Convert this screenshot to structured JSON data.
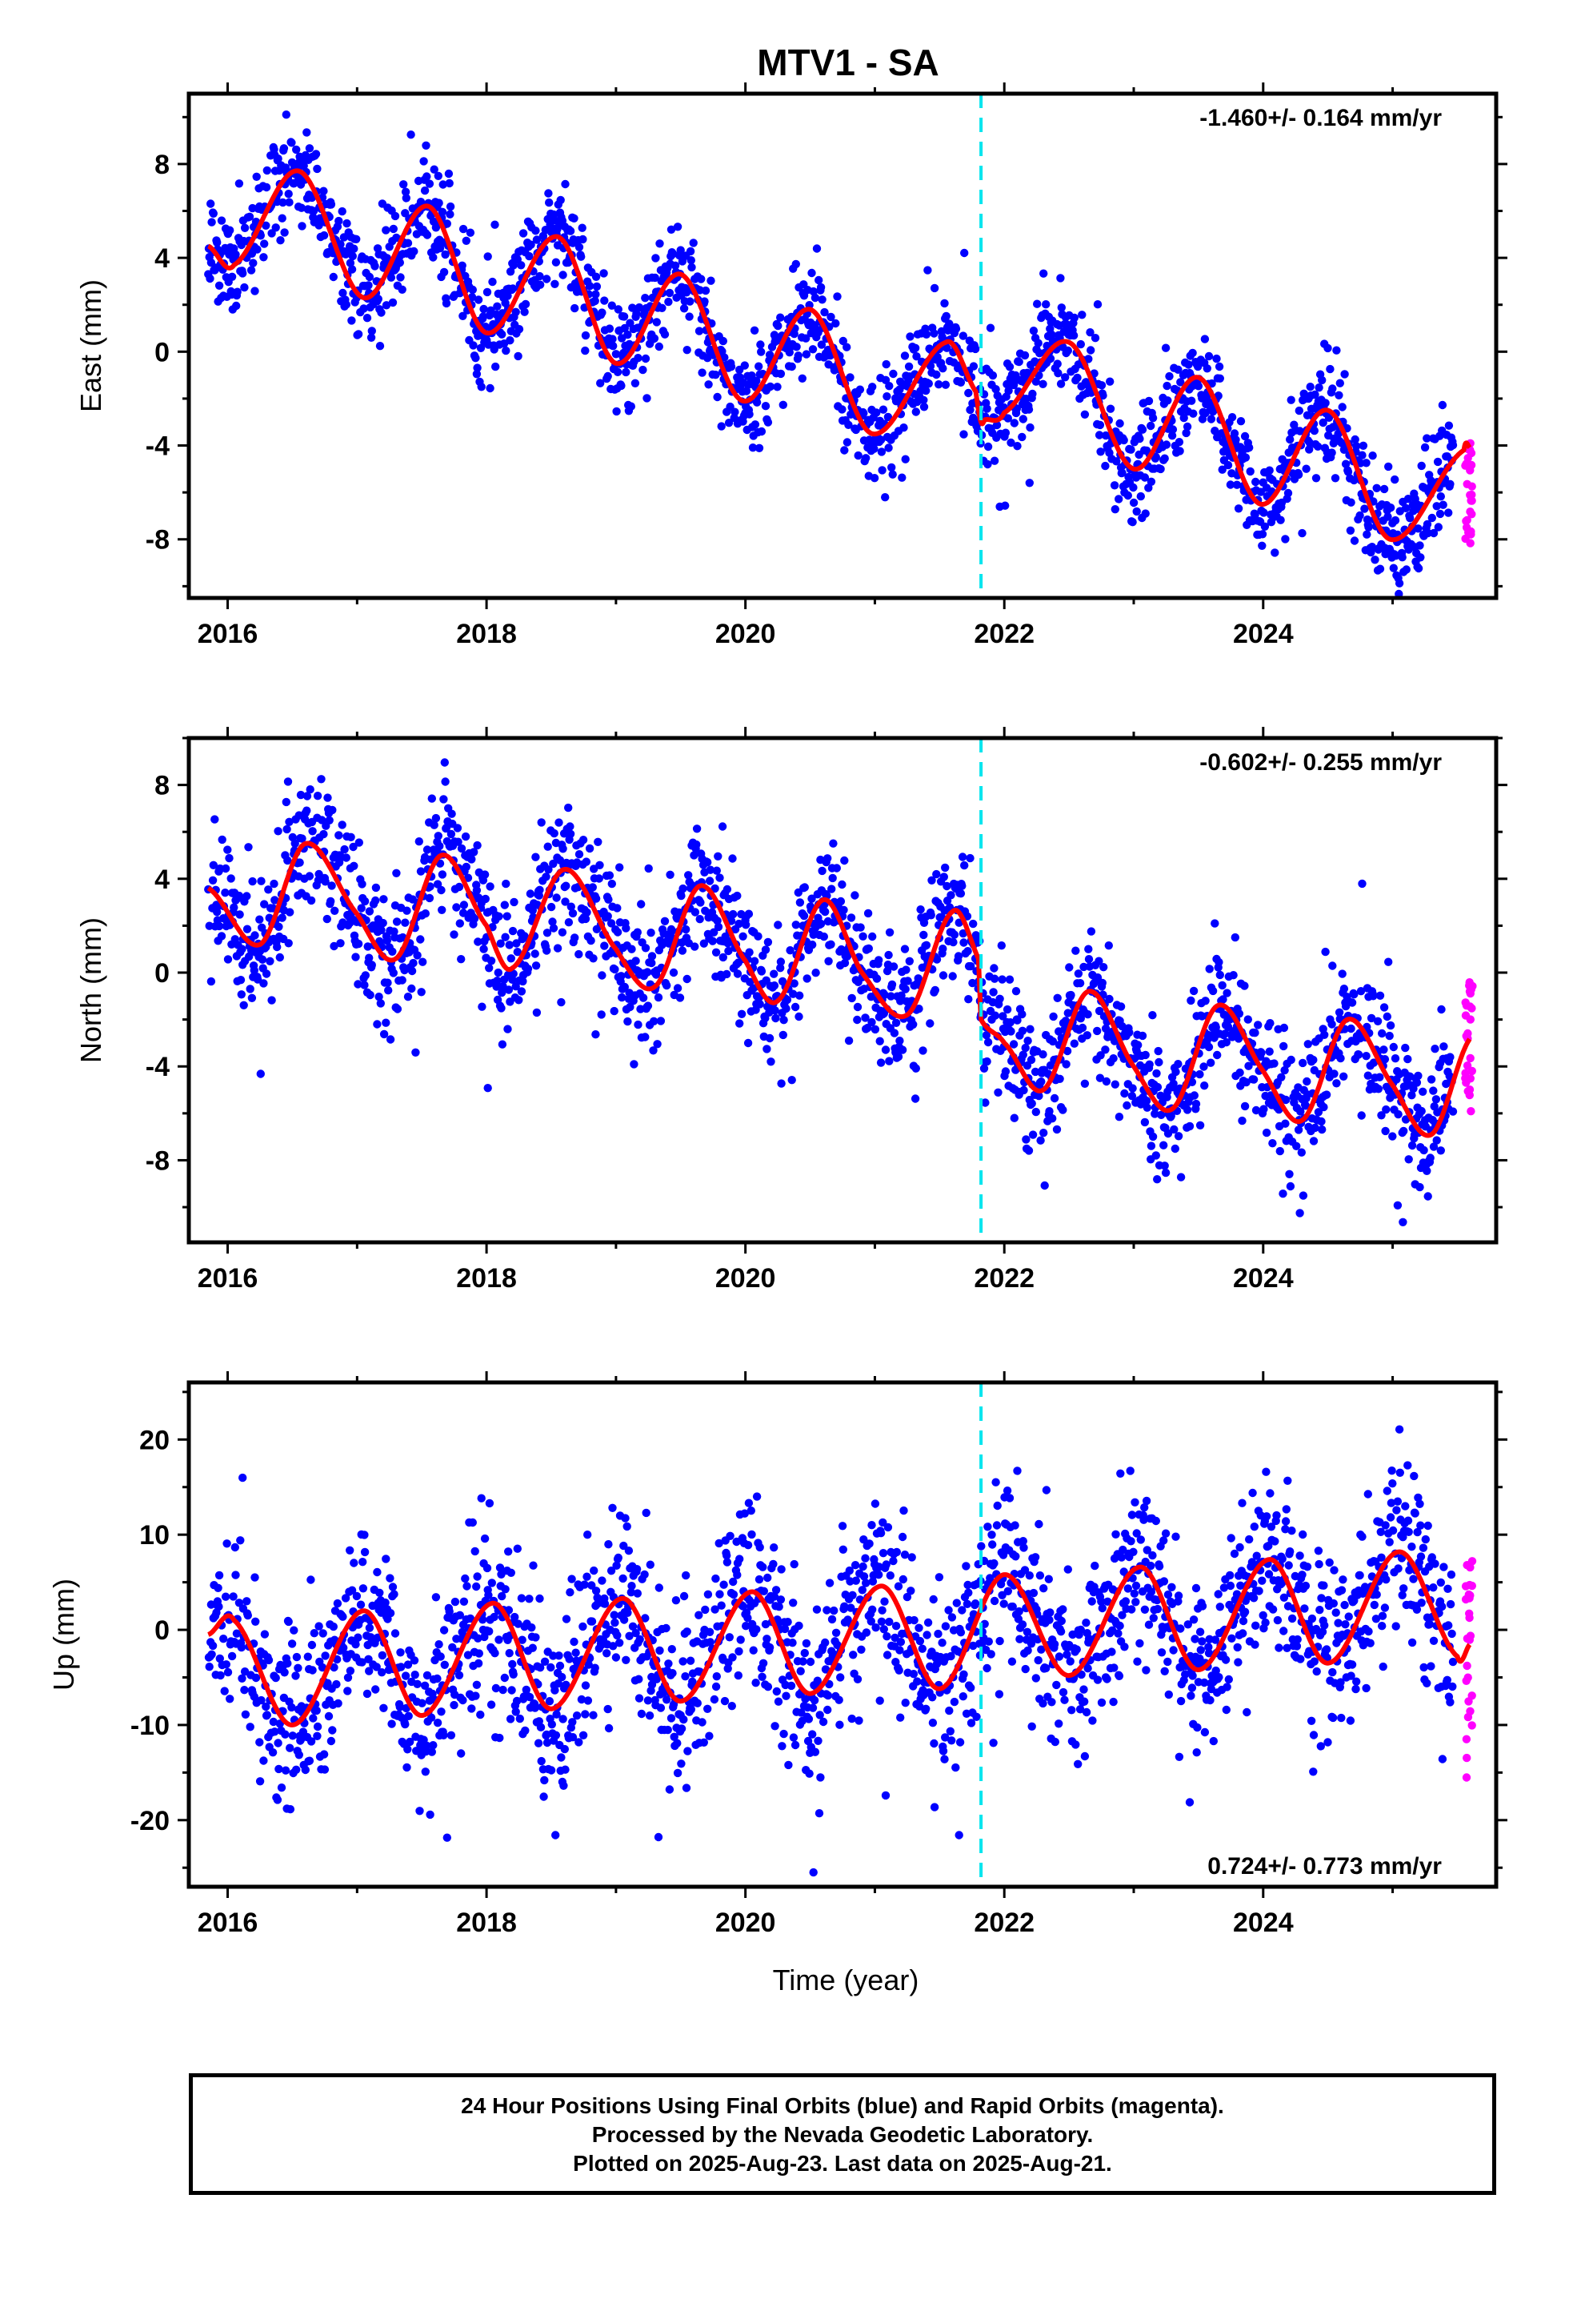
{
  "title": "MTV1 - SA",
  "xlabel": "Time (year)",
  "footer": {
    "line1": "24 Hour Positions Using Final Orbits (blue) and Rapid Orbits (magenta).",
    "line2": "Processed by the Nevada Geodetic Laboratory.",
    "line3": "Plotted on 2025-Aug-23. Last data on 2025-Aug-21."
  },
  "colors": {
    "final_orbits": "#0000ff",
    "rapid_orbits": "#ff00ff",
    "model": "#ff0000",
    "offset_line": "#00e5ee"
  },
  "chart_data": [
    {
      "type": "scatter",
      "name": "east",
      "ylabel": "East (mm)",
      "rate": "-1.460+/- 0.164 mm/yr",
      "rate_position": "top-right",
      "xlim": [
        2015.7,
        2025.8
      ],
      "ylim": [
        -10.5,
        11
      ],
      "yticks": [
        8,
        4,
        0,
        -4,
        -8
      ],
      "xticks": [
        2016,
        2018,
        2020,
        2022,
        2024
      ],
      "offset_epoch": 2021.82,
      "model_anchors": [
        [
          2015.85,
          4.5
        ],
        [
          2016.05,
          3.7
        ],
        [
          2016.55,
          7.7
        ],
        [
          2017.05,
          2.3
        ],
        [
          2017.55,
          6.2
        ],
        [
          2018.0,
          0.8
        ],
        [
          2018.55,
          4.9
        ],
        [
          2019.0,
          -0.5
        ],
        [
          2019.5,
          3.3
        ],
        [
          2019.98,
          -2.1
        ],
        [
          2020.5,
          1.8
        ],
        [
          2020.98,
          -3.5
        ],
        [
          2021.55,
          0.4
        ],
        [
          2021.78,
          -1.7
        ],
        [
          2021.82,
          -3.0
        ],
        [
          2021.85,
          -2.9
        ],
        [
          2022.0,
          -2.6
        ],
        [
          2022.5,
          0.4
        ],
        [
          2023.0,
          -5.0
        ],
        [
          2023.5,
          -1.1
        ],
        [
          2023.98,
          -6.5
        ],
        [
          2024.5,
          -2.5
        ],
        [
          2024.98,
          -8.0
        ],
        [
          2025.55,
          -4.2
        ],
        [
          2025.6,
          -4.1
        ]
      ],
      "seasonal_amplitude": 2.6,
      "scatter_sigma": 1.1,
      "rapid_y_range": [
        -8.6,
        -3.4
      ]
    },
    {
      "type": "scatter",
      "name": "north",
      "ylabel": "North (mm)",
      "rate": "-0.602+/- 0.255 mm/yr",
      "rate_position": "top-right",
      "xlim": [
        2015.7,
        2025.8
      ],
      "ylim": [
        -11.5,
        10
      ],
      "yticks": [
        8,
        4,
        0,
        -4,
        -8
      ],
      "xticks": [
        2016,
        2018,
        2020,
        2022,
        2024
      ],
      "offset_epoch": 2021.82,
      "model_anchors": [
        [
          2015.85,
          3.6
        ],
        [
          2016.25,
          1.2
        ],
        [
          2016.6,
          5.5
        ],
        [
          2017.0,
          2.5
        ],
        [
          2017.3,
          0.6
        ],
        [
          2017.65,
          5.0
        ],
        [
          2018.0,
          2.0
        ],
        [
          2018.2,
          0.2
        ],
        [
          2018.6,
          4.4
        ],
        [
          2019.0,
          1.0
        ],
        [
          2019.3,
          -0.6
        ],
        [
          2019.65,
          3.7
        ],
        [
          2020.0,
          0.5
        ],
        [
          2020.25,
          -1.2
        ],
        [
          2020.6,
          3.1
        ],
        [
          2020.9,
          0.0
        ],
        [
          2021.25,
          -1.8
        ],
        [
          2021.6,
          2.6
        ],
        [
          2021.8,
          0.6
        ],
        [
          2021.82,
          -2.0
        ],
        [
          2022.0,
          -3.0
        ],
        [
          2022.3,
          -5.0
        ],
        [
          2022.65,
          -0.8
        ],
        [
          2023.0,
          -4.0
        ],
        [
          2023.3,
          -5.8
        ],
        [
          2023.65,
          -1.4
        ],
        [
          2024.0,
          -4.2
        ],
        [
          2024.3,
          -6.3
        ],
        [
          2024.65,
          -2.0
        ],
        [
          2025.0,
          -4.8
        ],
        [
          2025.3,
          -6.9
        ],
        [
          2025.6,
          -2.8
        ]
      ],
      "seasonal_amplitude": 2.2,
      "scatter_sigma": 1.4,
      "rapid_y_range": [
        -6.0,
        -0.4
      ]
    },
    {
      "type": "scatter",
      "name": "up",
      "ylabel": "Up (mm)",
      "rate": "0.724+/- 0.773 mm/yr",
      "rate_position": "bottom-right",
      "xlim": [
        2015.7,
        2025.8
      ],
      "ylim": [
        -27,
        26
      ],
      "yticks": [
        20,
        10,
        0,
        -10,
        -20
      ],
      "xticks": [
        2016,
        2018,
        2020,
        2022,
        2024
      ],
      "offset_epoch": 2021.82,
      "model_anchors": [
        [
          2015.85,
          -0.5
        ],
        [
          2016.05,
          1.0
        ],
        [
          2016.5,
          -10.0
        ],
        [
          2017.05,
          2.0
        ],
        [
          2017.5,
          -9.0
        ],
        [
          2018.05,
          2.8
        ],
        [
          2018.5,
          -8.3
        ],
        [
          2019.05,
          3.3
        ],
        [
          2019.5,
          -7.5
        ],
        [
          2020.05,
          4.0
        ],
        [
          2020.5,
          -6.7
        ],
        [
          2021.05,
          4.6
        ],
        [
          2021.5,
          -6.2
        ],
        [
          2022.0,
          5.8
        ],
        [
          2022.5,
          -4.8
        ],
        [
          2023.05,
          6.6
        ],
        [
          2023.5,
          -4.2
        ],
        [
          2024.05,
          7.4
        ],
        [
          2024.5,
          -3.5
        ],
        [
          2025.05,
          8.2
        ],
        [
          2025.5,
          -2.8
        ],
        [
          2025.6,
          -1.5
        ]
      ],
      "seasonal_amplitude": 7.0,
      "scatter_sigma": 4.5,
      "rapid_y_range": [
        -17.0,
        8.0
      ]
    }
  ]
}
